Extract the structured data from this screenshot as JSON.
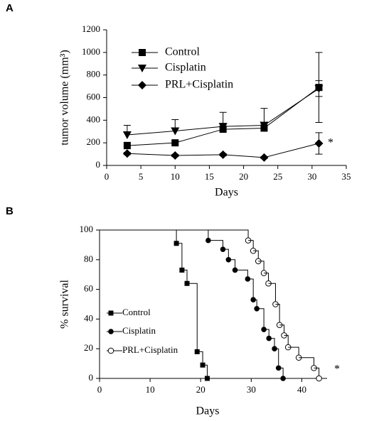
{
  "chart_data": [
    {
      "type": "line",
      "panel": "A",
      "x_label": "Days",
      "y_label": "tumor volume (mm³)",
      "xlim": [
        0,
        35
      ],
      "xticks": [
        0,
        5,
        10,
        15,
        20,
        25,
        30,
        35
      ],
      "ylim": [
        0,
        1200
      ],
      "yticks": [
        0,
        200,
        400,
        600,
        800,
        1000,
        1200
      ],
      "annotation": "*",
      "series": [
        {
          "name": "Control",
          "color": "#000000",
          "marker": "square",
          "x": [
            3,
            10,
            17,
            23,
            31
          ],
          "values": [
            175,
            200,
            320,
            330,
            690
          ],
          "errors": [
            30,
            20,
            40,
            40,
            310
          ]
        },
        {
          "name": "Cisplatin",
          "color": "#000000",
          "marker": "triangle-down",
          "x": [
            3,
            10,
            17,
            23,
            31
          ],
          "values": [
            270,
            305,
            345,
            355,
            680
          ],
          "errors": [
            85,
            100,
            125,
            150,
            70
          ]
        },
        {
          "name": "PRL+Cisplatin",
          "color": "#000000",
          "marker": "diamond",
          "x": [
            3,
            10,
            17,
            23,
            31
          ],
          "values": [
            105,
            88,
            95,
            70,
            195
          ],
          "errors": [
            10,
            10,
            10,
            8,
            95
          ]
        }
      ]
    },
    {
      "type": "step",
      "panel": "B",
      "x_label": "Days",
      "y_label": "% survival",
      "xlim": [
        0,
        45
      ],
      "xticks": [
        0,
        10,
        20,
        30,
        40
      ],
      "ylim": [
        0,
        100
      ],
      "yticks": [
        0,
        20,
        40,
        60,
        80,
        100
      ],
      "annotation": "*",
      "series": [
        {
          "name": "Control",
          "color": "#000000",
          "marker": "circle-none",
          "x": [
            0,
            15.2,
            16.3,
            17.3,
            19.3,
            20.4,
            21.3
          ],
          "values": [
            100,
            91,
            73,
            64,
            18,
            9,
            0
          ]
        },
        {
          "name": "Cisplatin",
          "color": "#000000",
          "marker": "circle",
          "x": [
            0,
            21.5,
            24.4,
            25.5,
            26.8,
            29.3,
            30.4,
            31.1,
            32.5,
            33.5,
            34.6,
            35.4,
            36.3
          ],
          "values": [
            100,
            93,
            87,
            80,
            73,
            67,
            53,
            47,
            33,
            27,
            20,
            7,
            0
          ]
        },
        {
          "name": "PRL+Cisplatin",
          "color": "#000000",
          "marker": "circle-open",
          "x": [
            0,
            29.4,
            30.4,
            31.4,
            32.5,
            33.4,
            34.8,
            35.6,
            36.5,
            37.3,
            39.4,
            42.4,
            43.4
          ],
          "values": [
            100,
            93,
            86,
            79,
            71,
            64,
            50,
            36,
            29,
            21,
            14,
            7,
            0
          ]
        }
      ]
    }
  ]
}
